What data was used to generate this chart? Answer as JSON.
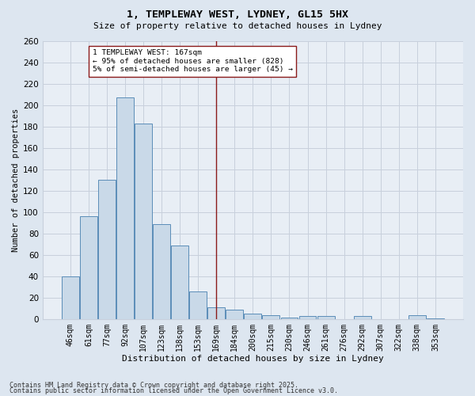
{
  "title": "1, TEMPLEWAY WEST, LYDNEY, GL15 5HX",
  "subtitle": "Size of property relative to detached houses in Lydney",
  "xlabel": "Distribution of detached houses by size in Lydney",
  "ylabel": "Number of detached properties",
  "footnote1": "Contains HM Land Registry data © Crown copyright and database right 2025.",
  "footnote2": "Contains public sector information licensed under the Open Government Licence v3.0.",
  "bar_labels": [
    "46sqm",
    "61sqm",
    "77sqm",
    "92sqm",
    "107sqm",
    "123sqm",
    "138sqm",
    "153sqm",
    "169sqm",
    "184sqm",
    "200sqm",
    "215sqm",
    "230sqm",
    "246sqm",
    "261sqm",
    "276sqm",
    "292sqm",
    "307sqm",
    "322sqm",
    "338sqm",
    "353sqm"
  ],
  "bar_values": [
    40,
    96,
    130,
    207,
    183,
    89,
    69,
    26,
    11,
    9,
    5,
    4,
    2,
    3,
    3,
    0,
    3,
    0,
    0,
    4,
    1
  ],
  "bar_color": "#c9d9e8",
  "bar_edge_color": "#5b8db8",
  "background_color": "#dde6f0",
  "plot_bg_color": "#e8eef5",
  "grid_color": "#c8d0dc",
  "annotation_text": "1 TEMPLEWAY WEST: 167sqm\n← 95% of detached houses are smaller (828)\n5% of semi-detached houses are larger (45) →",
  "vline_x_idx": 8,
  "vline_color": "#8b1a1a",
  "annotation_box_edgecolor": "#8b1a1a",
  "ylim": [
    0,
    260
  ],
  "yticks": [
    0,
    20,
    40,
    60,
    80,
    100,
    120,
    140,
    160,
    180,
    200,
    220,
    240,
    260
  ]
}
